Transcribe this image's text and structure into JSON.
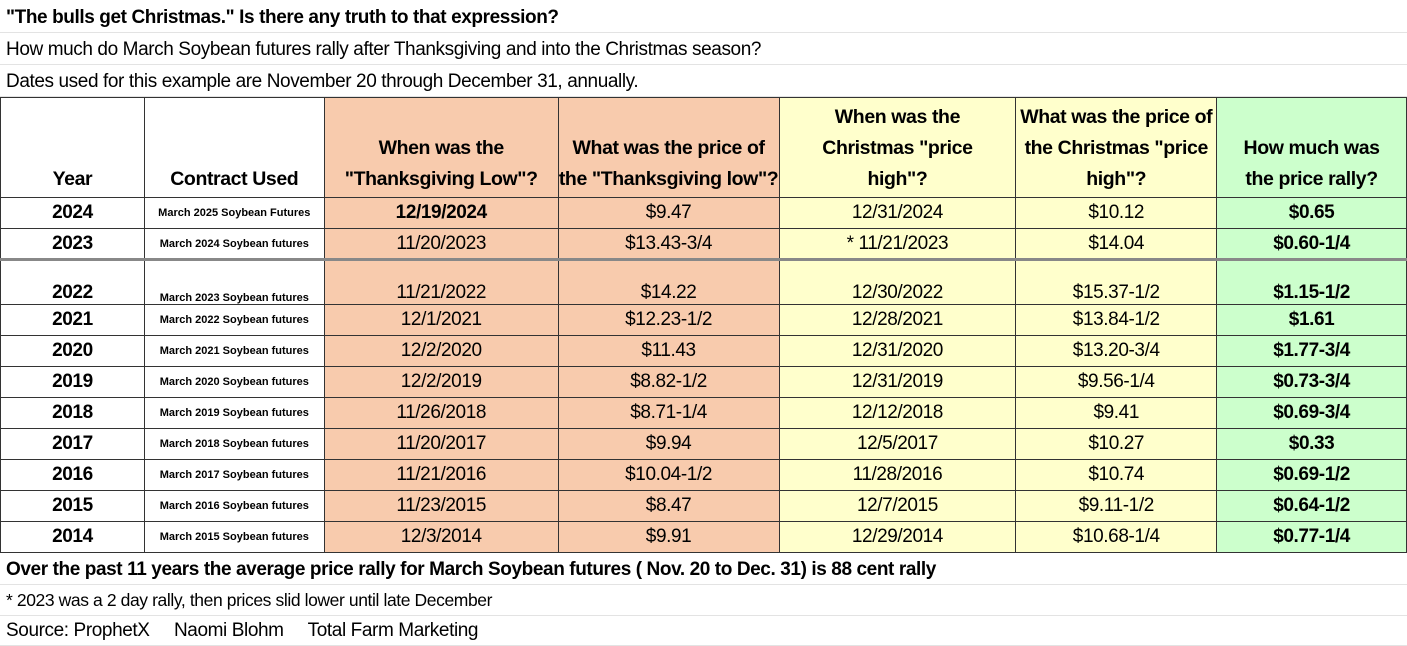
{
  "title": "\"The bulls get Christmas.\" Is there any truth to that expression?",
  "subtitle": "How much do March Soybean futures rally after Thanksgiving and into the Christmas season?",
  "dates_note": "Dates used for this example are November 20 through December 31, annually.",
  "colors": {
    "thanksgiving": "#F8CBAD",
    "christmas": "#FFFFCC",
    "rally": "#CCFFCC"
  },
  "headers": [
    "Year",
    "Contract Used",
    "When was the \"Thanksgiving Low\"?",
    "What was the price of the \"Thanksgiving low\"?",
    "When was the Christmas \"price high\"?",
    "What was the price of the Christmas \"price high\"?",
    "How much was the price rally?"
  ],
  "rows": [
    {
      "year": "2024",
      "contract": "March 2025 Soybean Futures",
      "low_date": "12/19/2024",
      "low_price": "$9.47",
      "high_date": "12/31/2024",
      "high_price": "$10.12",
      "rally": "$0.65"
    },
    {
      "year": "2023",
      "contract": "March 2024 Soybean futures",
      "low_date": "11/20/2023",
      "low_price": "$13.43-3/4",
      "high_date": "*  11/21/2023",
      "high_price": "$14.04",
      "rally": "$0.60-1/4"
    },
    {
      "year": "2022",
      "contract": "March 2023 Soybean futures",
      "low_date": "11/21/2022",
      "low_price": "$14.22",
      "high_date": "12/30/2022",
      "high_price": "$15.37-1/2",
      "rally": "$1.15-1/2"
    },
    {
      "year": "2021",
      "contract": "March 2022 Soybean futures",
      "low_date": "12/1/2021",
      "low_price": "$12.23-1/2",
      "high_date": "12/28/2021",
      "high_price": "$13.84-1/2",
      "rally": "$1.61"
    },
    {
      "year": "2020",
      "contract": "March 2021 Soybean futures",
      "low_date": "12/2/2020",
      "low_price": "$11.43",
      "high_date": "12/31/2020",
      "high_price": "$13.20-3/4",
      "rally": "$1.77-3/4"
    },
    {
      "year": "2019",
      "contract": "March 2020 Soybean futures",
      "low_date": "12/2/2019",
      "low_price": "$8.82-1/2",
      "high_date": "12/31/2019",
      "high_price": "$9.56-1/4",
      "rally": "$0.73-3/4"
    },
    {
      "year": "2018",
      "contract": "March 2019 Soybean futures",
      "low_date": "11/26/2018",
      "low_price": "$8.71-1/4",
      "high_date": "12/12/2018",
      "high_price": "$9.41",
      "rally": "$0.69-3/4"
    },
    {
      "year": "2017",
      "contract": "March 2018 Soybean futures",
      "low_date": "11/20/2017",
      "low_price": "$9.94",
      "high_date": "12/5/2017",
      "high_price": "$10.27",
      "rally": "$0.33"
    },
    {
      "year": "2016",
      "contract": "March 2017 Soybean futures",
      "low_date": "11/21/2016",
      "low_price": "$10.04-1/2",
      "high_date": "11/28/2016",
      "high_price": "$10.74",
      "rally": "$0.69-1/2"
    },
    {
      "year": "2015",
      "contract": "March 2016 Soybean futures",
      "low_date": "11/23/2015",
      "low_price": "$8.47",
      "high_date": "12/7/2015",
      "high_price": "$9.11-1/2",
      "rally": "$0.64-1/2"
    },
    {
      "year": "2014",
      "contract": "March 2015 Soybean futures",
      "low_date": "12/3/2014",
      "low_price": "$9.91",
      "high_date": "12/29/2014",
      "high_price": "$10.68-1/4",
      "rally": "$0.77-1/4"
    }
  ],
  "summary": "Over the past 11 years the average price rally for March  Soybean futures ( Nov. 20 to Dec. 31)  is 88  cent rally",
  "footnote": "*  2023 was a 2 day rally, then prices slid lower until late December",
  "source": "Source: ProphetX     Naomi Blohm     Total Farm Marketing"
}
